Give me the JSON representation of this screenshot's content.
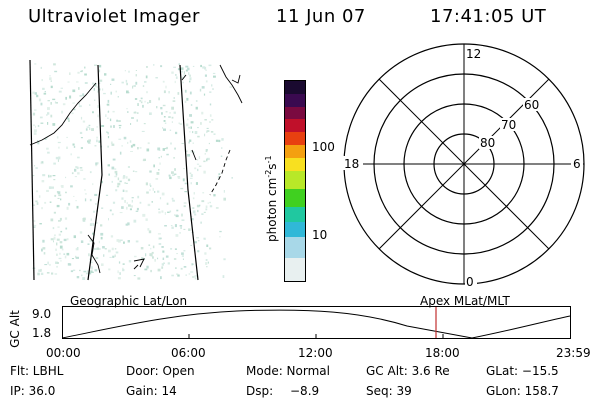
{
  "header": {
    "title": "Ultraviolet Imager",
    "date": "11 Jun 07",
    "time": "17:41:05 UT"
  },
  "colorbar": {
    "label_main": "photon cm",
    "label_exp1": "-2",
    "label_s": "s",
    "label_exp2": "-1",
    "ticks": [
      "100",
      "10"
    ],
    "colors": [
      "#1a0a30",
      "#3a0a50",
      "#7a0a40",
      "#c0102a",
      "#e84010",
      "#f4a010",
      "#f8e020",
      "#b8e828",
      "#40d020",
      "#20c8a0",
      "#30b8d8",
      "#a8d8e8",
      "#e8f0f0"
    ]
  },
  "polar_plot": {
    "ring_labels": [
      "80",
      "70",
      "60"
    ],
    "hour_labels": {
      "top": "12",
      "left": "18",
      "right": "6",
      "bottom": "0"
    }
  },
  "altitude_plot": {
    "ylabel": "GC Alt",
    "yticks": [
      "9.0",
      "1.8"
    ],
    "left_title": "Geographic Lat/Lon",
    "right_title": "Apex  MLat/MLT",
    "xticks": [
      "00:00",
      "06:00",
      "12:00",
      "18:00",
      "23:59"
    ],
    "marker_color": "#c03030"
  },
  "info": {
    "row1": {
      "filter": "Flt: LBHL",
      "door": "Door: Open",
      "mode": "Mode: Normal",
      "gc_alt": "GC Alt: 3.6 Re",
      "glat": "GLat: −15.5"
    },
    "row2": {
      "ip": "IP: 36.0",
      "gain": "Gain: 14",
      "dsp_label": "Dsp:",
      "dsp_value": "−8.9",
      "seq": "Seq: 39",
      "glon": "GLon: 158.7"
    }
  }
}
